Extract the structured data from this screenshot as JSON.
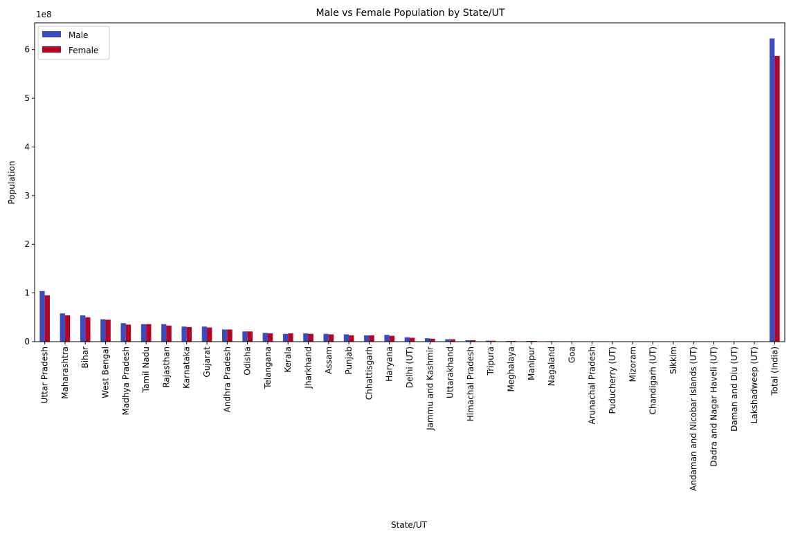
{
  "chart_data": {
    "type": "bar",
    "title": "Male vs Female Population by State/UT",
    "xlabel": "State/UT",
    "ylabel": "Population",
    "offset_label": "1e8",
    "ylim": [
      0,
      6.55
    ],
    "yticks": [
      0,
      1,
      2,
      3,
      4,
      5,
      6
    ],
    "legend_position": "top-left",
    "categories": [
      "Uttar Pradesh",
      "Maharashtra",
      "Bihar",
      "West Bengal",
      "Madhya Pradesh",
      "Tamil Nadu",
      "Rajasthan",
      "Karnataka",
      "Gujarat",
      "Andhra Pradesh",
      "Odisha",
      "Telangana",
      "Kerala",
      "Jharkhand",
      "Assam",
      "Punjab",
      "Chhattisgarh",
      "Haryana",
      "Delhi (UT)",
      "Jammu and Kashmir",
      "Uttarakhand",
      "Himachal Pradesh",
      "Tripura",
      "Meghalaya",
      "Manipur",
      "Nagaland",
      "Goa",
      "Arunachal Pradesh",
      "Puducherry (UT)",
      "Mizoram",
      "Chandigarh (UT)",
      "Sikkim",
      "Andaman and Nicobar Islands (UT)",
      "Dadra and Nagar Haveli (UT)",
      "Daman and Diu (UT)",
      "Lakshadweep (UT)",
      "Total (India)"
    ],
    "series": [
      {
        "name": "Male",
        "color": "#3b4cc0",
        "values": [
          1.04,
          0.58,
          0.54,
          0.46,
          0.38,
          0.36,
          0.36,
          0.31,
          0.31,
          0.25,
          0.21,
          0.18,
          0.16,
          0.17,
          0.16,
          0.15,
          0.13,
          0.14,
          0.09,
          0.07,
          0.05,
          0.03,
          0.02,
          0.015,
          0.014,
          0.01,
          0.008,
          0.007,
          0.006,
          0.005,
          0.006,
          0.003,
          0.002,
          0.002,
          0.0015,
          0.0003,
          6.23
        ]
      },
      {
        "name": "Female",
        "color": "#b40426",
        "values": [
          0.95,
          0.54,
          0.5,
          0.45,
          0.35,
          0.36,
          0.33,
          0.3,
          0.29,
          0.25,
          0.21,
          0.17,
          0.17,
          0.16,
          0.15,
          0.13,
          0.13,
          0.12,
          0.08,
          0.06,
          0.05,
          0.03,
          0.018,
          0.015,
          0.014,
          0.009,
          0.007,
          0.007,
          0.006,
          0.005,
          0.005,
          0.003,
          0.002,
          0.001,
          0.001,
          0.0003,
          5.87
        ]
      }
    ]
  }
}
